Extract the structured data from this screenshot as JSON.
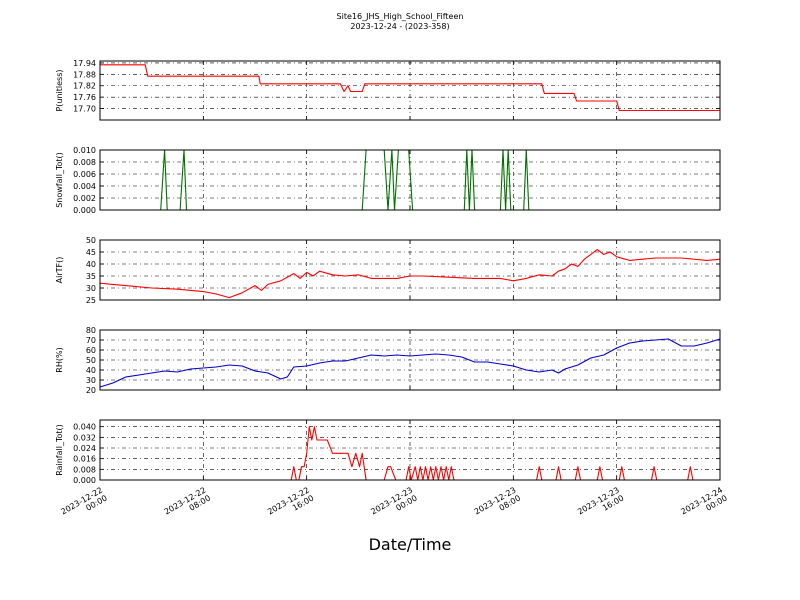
{
  "chart_data": {
    "type": "line",
    "title": "Site16_JHS_High_School_Fifteen",
    "subtitle": "2023-12-24 - (2023-358)",
    "xlabel": "Date/Time",
    "x_range": [
      "2023-12-22 00:00",
      "2023-12-24 00:00"
    ],
    "x_ticks": [
      {
        "l1": "2023-12-22",
        "l2": "00:00"
      },
      {
        "l1": "2023-12-22",
        "l2": "08:00"
      },
      {
        "l1": "2023-12-22",
        "l2": "16:00"
      },
      {
        "l1": "2023-12-23",
        "l2": "00:00"
      },
      {
        "l1": "2023-12-23",
        "l2": "08:00"
      },
      {
        "l1": "2023-12-23",
        "l2": "16:00"
      },
      {
        "l1": "2023-12-24",
        "l2": "00:00"
      }
    ],
    "grid": true,
    "panels": [
      {
        "ylabel": "P(unitless)",
        "color": "#ff0000",
        "ylim": [
          17.64,
          17.95
        ],
        "yticks": [
          "17.70",
          "17.76",
          "17.82",
          "17.88",
          "17.94"
        ],
        "tick_values": [
          17.7,
          17.76,
          17.82,
          17.88,
          17.94
        ],
        "hours": [
          0,
          3.5,
          3.7,
          12.3,
          12.4,
          18.6,
          18.9,
          19.2,
          19.4,
          20.3,
          20.5,
          34.2,
          34.4,
          36.7,
          36.9,
          40.0,
          40.2,
          48
        ],
        "values": [
          17.93,
          17.93,
          17.87,
          17.87,
          17.83,
          17.83,
          17.79,
          17.82,
          17.79,
          17.79,
          17.83,
          17.83,
          17.78,
          17.78,
          17.74,
          17.74,
          17.69,
          17.69
        ]
      },
      {
        "ylabel": "Snowfall_Tot()",
        "color": "#007000",
        "ylim": [
          0,
          0.01
        ],
        "yticks": [
          "0.000",
          "0.002",
          "0.004",
          "0.006",
          "0.008",
          "0.010"
        ],
        "tick_values": [
          0,
          0.002,
          0.004,
          0.006,
          0.008,
          0.01
        ],
        "hours": [
          0,
          4.7,
          5.0,
          5.2,
          6.2,
          6.5,
          6.7,
          20.3,
          20.6,
          22.0,
          22.3,
          22.6,
          22.8,
          23.1,
          23.4,
          23.9,
          24.2,
          28.2,
          28.4,
          28.6,
          28.8,
          29.0,
          31.0,
          31.2,
          31.4,
          31.6,
          31.8,
          32.8,
          33.0,
          33.2,
          48
        ],
        "values": [
          0,
          0,
          0.01,
          0,
          0,
          0.01,
          0,
          0,
          0.01,
          0.01,
          0,
          0.01,
          0,
          0.01,
          0.01,
          0.01,
          0,
          0,
          0.01,
          0,
          0.01,
          0,
          0,
          0.01,
          0,
          0.01,
          0,
          0,
          0.01,
          0,
          0
        ]
      },
      {
        "ylabel": "AirTF()",
        "color": "#ff0000",
        "ylim": [
          25,
          50
        ],
        "yticks": [
          "25",
          "30",
          "35",
          "40",
          "45",
          "50"
        ],
        "tick_values": [
          25,
          30,
          35,
          40,
          45,
          50
        ],
        "hours": [
          0,
          1,
          2,
          4,
          6,
          8,
          9,
          10,
          11,
          12,
          12.5,
          13,
          14,
          15,
          15.5,
          16,
          16.5,
          17,
          18,
          19,
          20,
          21,
          22,
          23,
          24,
          25,
          27,
          29,
          31,
          32,
          33,
          34,
          35,
          35.5,
          36,
          36.5,
          37,
          37.5,
          38,
          38.5,
          39,
          39.5,
          40,
          41,
          42,
          43,
          45,
          47,
          48
        ],
        "values": [
          32,
          31.5,
          31,
          30,
          29.5,
          28.5,
          27.5,
          26,
          28,
          31,
          29,
          31.5,
          33,
          36,
          34,
          36.5,
          35,
          37,
          35.5,
          35,
          35.5,
          34,
          34,
          34,
          35,
          35,
          34.5,
          34,
          34,
          33,
          34,
          35.5,
          35,
          37,
          38,
          40,
          39,
          42,
          44,
          46,
          44,
          45,
          43,
          41.5,
          42,
          42.5,
          42.5,
          41.5,
          42
        ]
      },
      {
        "ylabel": "RH(%)",
        "color": "#0000cc",
        "ylim": [
          20,
          80
        ],
        "yticks": [
          "20",
          "30",
          "40",
          "50",
          "60",
          "70",
          "80"
        ],
        "tick_values": [
          20,
          30,
          40,
          50,
          60,
          70,
          80
        ],
        "hours": [
          0,
          1,
          2,
          3,
          4,
          5,
          6,
          7,
          8,
          9,
          10,
          11,
          12,
          13,
          14,
          14.5,
          15,
          16,
          17,
          18,
          19,
          20,
          21,
          22,
          23,
          24,
          25,
          26,
          27,
          28,
          29,
          30,
          31,
          32,
          33,
          34,
          35,
          35.5,
          36,
          37,
          38,
          39,
          40,
          41,
          42,
          43,
          44,
          45,
          46,
          47,
          48
        ],
        "values": [
          23,
          27,
          33,
          35,
          37,
          39,
          38,
          41,
          42,
          43,
          45,
          44,
          39,
          37,
          31,
          33,
          43,
          44,
          47,
          49,
          49,
          52,
          55,
          54,
          55,
          54,
          55,
          56,
          55,
          53,
          48,
          48,
          46,
          44,
          40,
          38,
          40,
          37,
          41,
          45,
          52,
          55,
          62,
          67,
          69,
          70,
          71,
          64,
          64,
          67,
          71
        ]
      },
      {
        "ylabel": "Rainfall_Tot()",
        "color": "#ff0000",
        "ylim": [
          0,
          0.045
        ],
        "yticks": [
          "0.000",
          "0.008",
          "0.016",
          "0.024",
          "0.032",
          "0.040"
        ],
        "tick_values": [
          0,
          0.008,
          0.016,
          0.024,
          0.032,
          0.04
        ],
        "hours": [
          0,
          14.8,
          15.0,
          15.2,
          15.4,
          15.6,
          15.8,
          16.0,
          16.2,
          16.4,
          16.6,
          16.8,
          17.0,
          17.3,
          17.6,
          18.0,
          18.6,
          19.2,
          19.5,
          19.8,
          20.1,
          20.3,
          20.6,
          21.0,
          22.0,
          22.3,
          22.5,
          22.9,
          23.7,
          23.9,
          24.1,
          24.4,
          24.6,
          24.8,
          25.0,
          25.2,
          25.4,
          25.6,
          25.8,
          26.0,
          26.2,
          26.4,
          26.6,
          26.8,
          27.0,
          27.2,
          27.4,
          33.8,
          34.0,
          34.2,
          35.3,
          35.5,
          35.7,
          36.8,
          37.0,
          37.2,
          38.5,
          38.7,
          38.9,
          40.2,
          40.4,
          40.6,
          42.7,
          42.9,
          43.1,
          45.5,
          45.7,
          45.9,
          48
        ],
        "values": [
          0,
          0,
          0.01,
          0,
          0,
          0.01,
          0.01,
          0.02,
          0.04,
          0.03,
          0.04,
          0.03,
          0.03,
          0.03,
          0.03,
          0.02,
          0.02,
          0.02,
          0.01,
          0.02,
          0.01,
          0.02,
          0,
          0,
          0,
          0.01,
          0.01,
          0,
          0,
          0.01,
          0,
          0.01,
          0,
          0.01,
          0,
          0.01,
          0,
          0.01,
          0,
          0.01,
          0,
          0.01,
          0,
          0.01,
          0,
          0.01,
          0,
          0,
          0.01,
          0,
          0,
          0.01,
          0,
          0,
          0.01,
          0,
          0,
          0.01,
          0,
          0,
          0.01,
          0,
          0,
          0.01,
          0,
          0,
          0.01,
          0,
          0
        ]
      }
    ]
  }
}
